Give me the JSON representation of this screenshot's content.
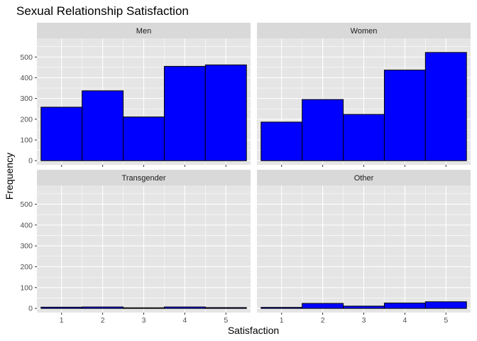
{
  "chart_data": {
    "type": "bar",
    "title": "Sexual Relationship Satisfaction",
    "xlabel": "Satisfaction",
    "ylabel": "Frequency",
    "x_ticks": [
      "1",
      "2",
      "3",
      "4",
      "5"
    ],
    "y_ticks": [
      "0",
      "100",
      "200",
      "300",
      "400",
      "500"
    ],
    "ylim": [
      -20,
      590
    ],
    "xlim": [
      0.4,
      5.6
    ],
    "bar_fill": "#0000FF",
    "bar_outline": "#000000",
    "panel_background": "#E5E5E5",
    "strip_background": "#D9D9D9",
    "grid": true,
    "legend": "none",
    "categories": [
      "1",
      "2",
      "3",
      "4",
      "5"
    ],
    "panels": [
      {
        "label": "Men",
        "values": [
          258,
          337,
          211,
          455,
          462
        ]
      },
      {
        "label": "Women",
        "values": [
          186,
          295,
          223,
          437,
          522
        ]
      },
      {
        "label": "Transgender",
        "values": [
          6,
          7,
          3,
          7,
          4
        ]
      },
      {
        "label": "Other",
        "values": [
          5,
          24,
          11,
          26,
          32
        ]
      }
    ]
  }
}
